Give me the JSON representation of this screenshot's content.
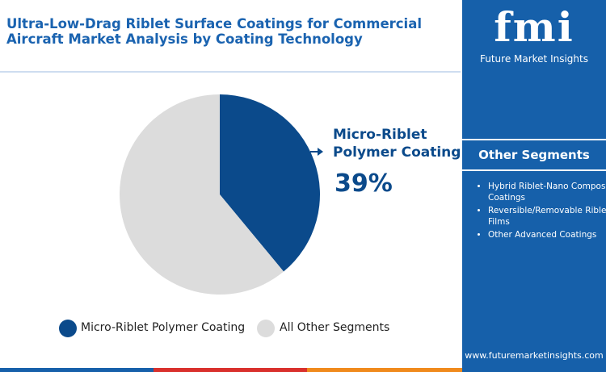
{
  "header": {
    "title": "Ultra-Low-Drag Riblet Surface Coatings for Commercial Aircraft Market Analysis by Coating Technology"
  },
  "brand": {
    "logo": "fmi",
    "name": "Future Market Insights",
    "url": "www.futuremarketinsights.com"
  },
  "chart_data": {
    "type": "pie",
    "categories": [
      "Micro-Riblet Polymer Coating",
      "All Other Segments"
    ],
    "values": [
      39,
      61
    ],
    "value_labels": [
      "39%",
      null
    ],
    "colors": [
      "#0b4a8b",
      "#dcdcdc"
    ]
  },
  "sidebar": {
    "title": "Other Segments",
    "items": [
      "Hybrid Riblet-Nano Composite Coatings",
      "Reversible/Removable Riblet Films",
      "Other Advanced Coatings"
    ]
  }
}
